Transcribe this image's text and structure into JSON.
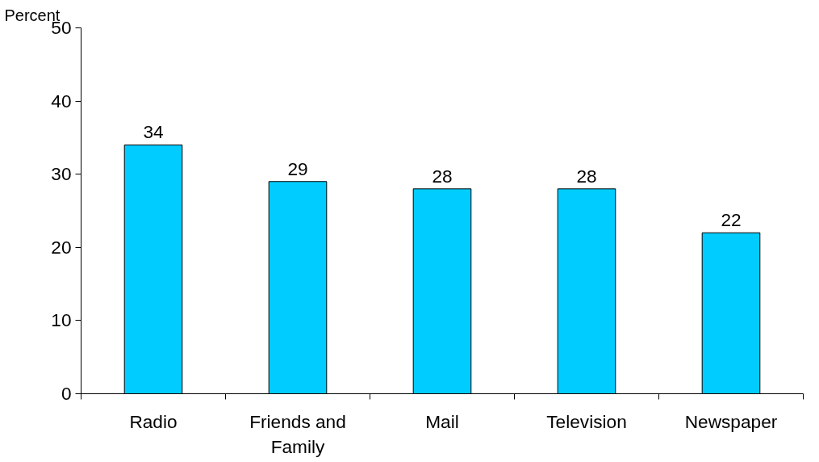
{
  "chart_data": {
    "type": "bar",
    "ylabel": "Percent",
    "categories": [
      "Radio",
      "Friends and Family",
      "Mail",
      "Television",
      "Newspaper"
    ],
    "values": [
      34,
      29,
      28,
      28,
      22
    ],
    "color": "#00ccff",
    "ylim": [
      0,
      50
    ],
    "yticks": [
      0,
      10,
      20,
      30,
      40,
      50
    ],
    "grid": false,
    "data_labels": true
  }
}
